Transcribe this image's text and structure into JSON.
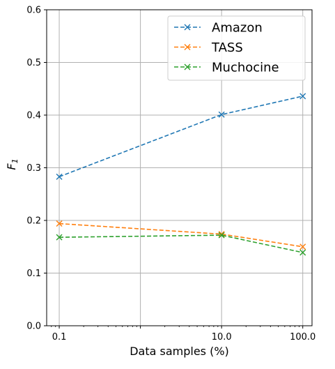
{
  "chart_data": {
    "type": "line",
    "title": "",
    "xlabel": "Data samples (%)",
    "ylabel": "F",
    "ylabel_subscript": "1",
    "x_scale": "log",
    "x": [
      0.1,
      10.0,
      100.0
    ],
    "x_tick_labels": [
      "0.1",
      "10.0",
      "100.0"
    ],
    "x_tick_values": [
      0.1,
      10.0,
      100.0
    ],
    "x_minor_gridline_at": 1.0,
    "xlim": [
      0.07,
      130.0
    ],
    "ylim": [
      0.0,
      0.6
    ],
    "y_ticks": [
      0.0,
      0.1,
      0.2,
      0.3,
      0.4,
      0.5,
      0.6
    ],
    "y_tick_labels": [
      "0.0",
      "0.1",
      "0.2",
      "0.3",
      "0.4",
      "0.5",
      "0.6"
    ],
    "grid": true,
    "legend_position": "top-right",
    "marker": "x",
    "line_style": "dashed",
    "series": [
      {
        "name": "Amazon",
        "color": "#1f77b4",
        "values": [
          0.283,
          0.401,
          0.436
        ]
      },
      {
        "name": "TASS",
        "color": "#ff7f0e",
        "values": [
          0.194,
          0.174,
          0.15
        ]
      },
      {
        "name": "Muchocine",
        "color": "#2ca02c",
        "values": [
          0.168,
          0.172,
          0.139
        ]
      }
    ]
  }
}
